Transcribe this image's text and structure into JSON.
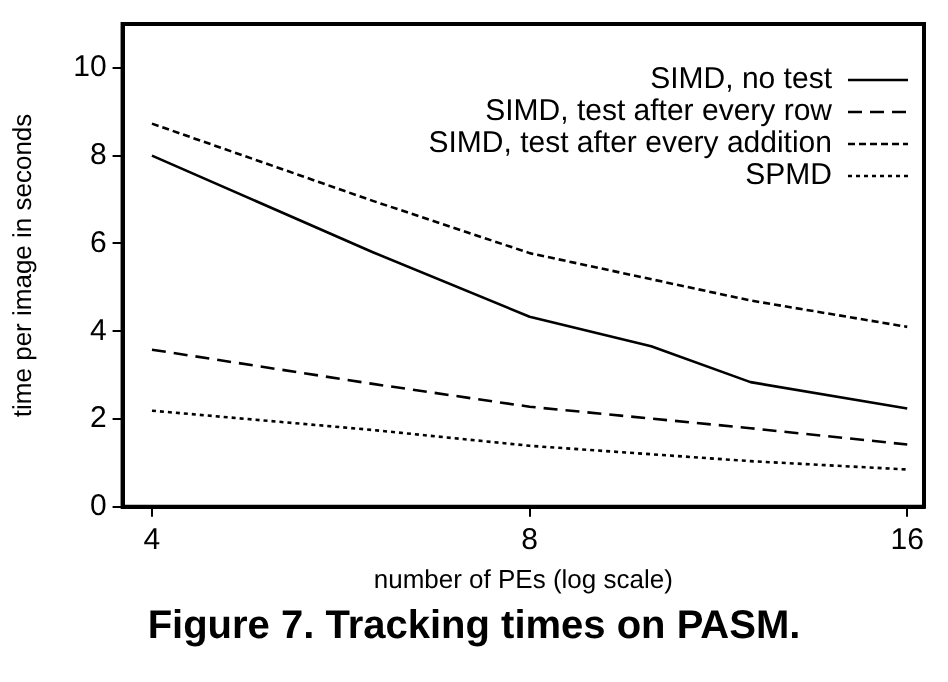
{
  "chart_data": {
    "type": "line",
    "title": "Figure 7. Tracking times on PASM.",
    "xlabel": "number of PEs (log scale)",
    "ylabel": "time per image in seconds",
    "log": "x",
    "xlim": [
      3.79,
      16.5
    ],
    "xticks": [
      4,
      8,
      16
    ],
    "ylim": [
      0,
      11
    ],
    "yticks": [
      0,
      2,
      4,
      6,
      8,
      10
    ],
    "grid": false,
    "legend": "top right",
    "marker": "none",
    "series": [
      {
        "name": "SIMD, no test",
        "color": "#000000",
        "line_style": "solid",
        "x": [
          4,
          6,
          8,
          10,
          12,
          16
        ],
        "values": [
          8.0,
          5.8,
          4.33,
          3.66,
          2.84,
          2.24
        ]
      },
      {
        "name": "SIMD, test after every row",
        "color": "#000000",
        "line_style": "dashed",
        "x": [
          4,
          6,
          8,
          12,
          16
        ],
        "values": [
          3.58,
          2.8,
          2.28,
          1.79,
          1.42
        ]
      },
      {
        "name": "SIMD, test after every addition",
        "color": "#000000",
        "line_style": "dashed",
        "x": [
          4,
          6,
          8,
          12,
          16
        ],
        "values": [
          8.73,
          6.97,
          5.78,
          4.7,
          4.1
        ]
      },
      {
        "name": "SPMD",
        "color": "#000000",
        "line_style": "dotted",
        "x": [
          4,
          6,
          8,
          12,
          16
        ],
        "values": [
          2.19,
          1.75,
          1.39,
          1.04,
          0.85
        ]
      }
    ]
  }
}
